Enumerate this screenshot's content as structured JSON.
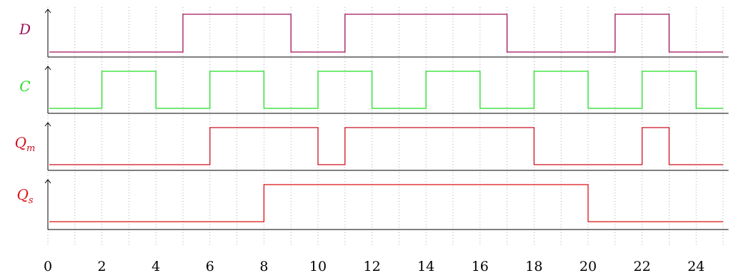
{
  "diagram": {
    "x_ticks": [
      "0",
      "2",
      "4",
      "6",
      "8",
      "10",
      "12",
      "14",
      "16",
      "18",
      "20",
      "22",
      "24"
    ],
    "x_range": [
      0,
      25.2
    ],
    "signals": [
      {
        "id": "D",
        "label": "D",
        "subscript": "",
        "color": "#a0105a",
        "initial": 0,
        "end": 25,
        "transitions": [
          5,
          9,
          11,
          17,
          21,
          23
        ]
      },
      {
        "id": "C",
        "label": "C",
        "subscript": "",
        "color": "#22dd22",
        "initial": 0,
        "end": 25,
        "transitions": [
          2,
          4,
          6,
          8,
          10,
          12,
          14,
          16,
          18,
          20,
          22,
          24
        ]
      },
      {
        "id": "Qm",
        "label": "Q",
        "subscript": "m",
        "color": "#cc1122",
        "initial": 0,
        "end": 25,
        "transitions": [
          6,
          10,
          11,
          18,
          22,
          23
        ]
      },
      {
        "id": "Qs",
        "label": "Q",
        "subscript": "s",
        "color": "#dd1111",
        "initial": 0,
        "end": 25,
        "transitions": [
          8,
          20
        ]
      }
    ]
  }
}
